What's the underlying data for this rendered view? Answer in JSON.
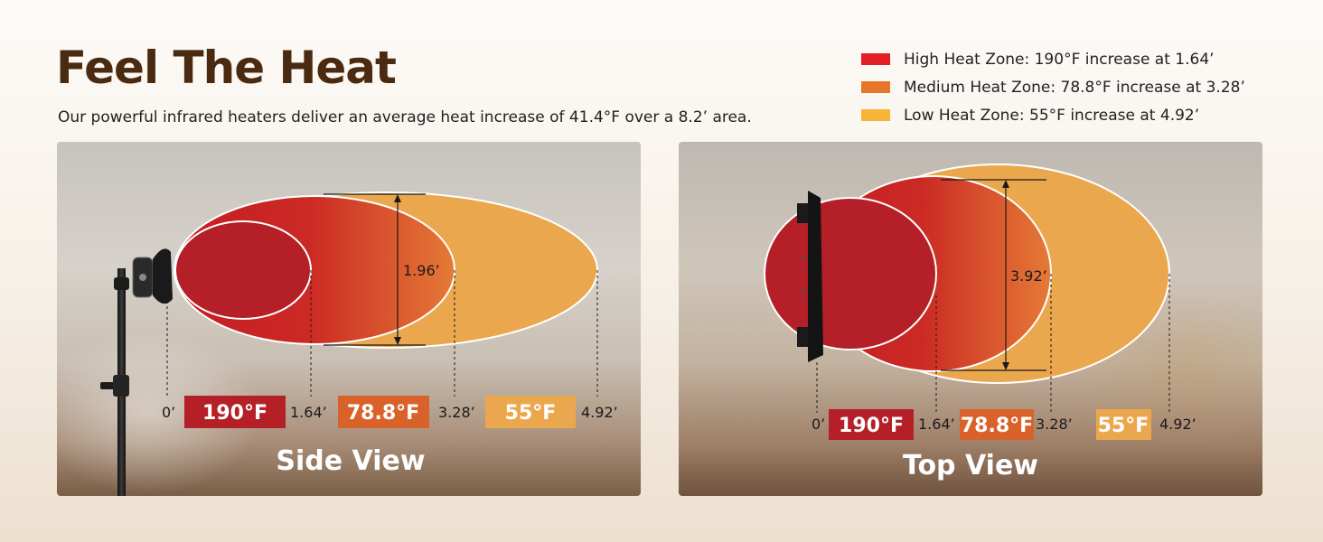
{
  "header": {
    "title": "Feel The Heat",
    "subtitle": "Our powerful infrared heaters deliver an average heat increase of 41.4°F over a 8.2’ area."
  },
  "legend": [
    {
      "label": "High Heat Zone: 190°F increase at 1.64’",
      "color": "#e31e24"
    },
    {
      "label": "Medium Heat Zone: 78.8°F increase at 3.28’",
      "color": "#e8762a"
    },
    {
      "label": "Low Heat Zone: 55°F increase at 4.92’",
      "color": "#f5b536"
    }
  ],
  "zones": [
    {
      "temp": "190°F",
      "color": "#b51f27"
    },
    {
      "temp": "78.8°F",
      "color": "#d9622a"
    },
    {
      "temp": "55°F",
      "color": "#eba74d"
    }
  ],
  "side_view": {
    "title": "Side View",
    "ticks": [
      "0’",
      "1.64’",
      "3.28’",
      "4.92’"
    ],
    "height_label": "1.96’"
  },
  "top_view": {
    "title": "Top View",
    "ticks": [
      "0’",
      "1.64’",
      "3.28’",
      "4.92’"
    ],
    "width_label": "3.92’"
  }
}
